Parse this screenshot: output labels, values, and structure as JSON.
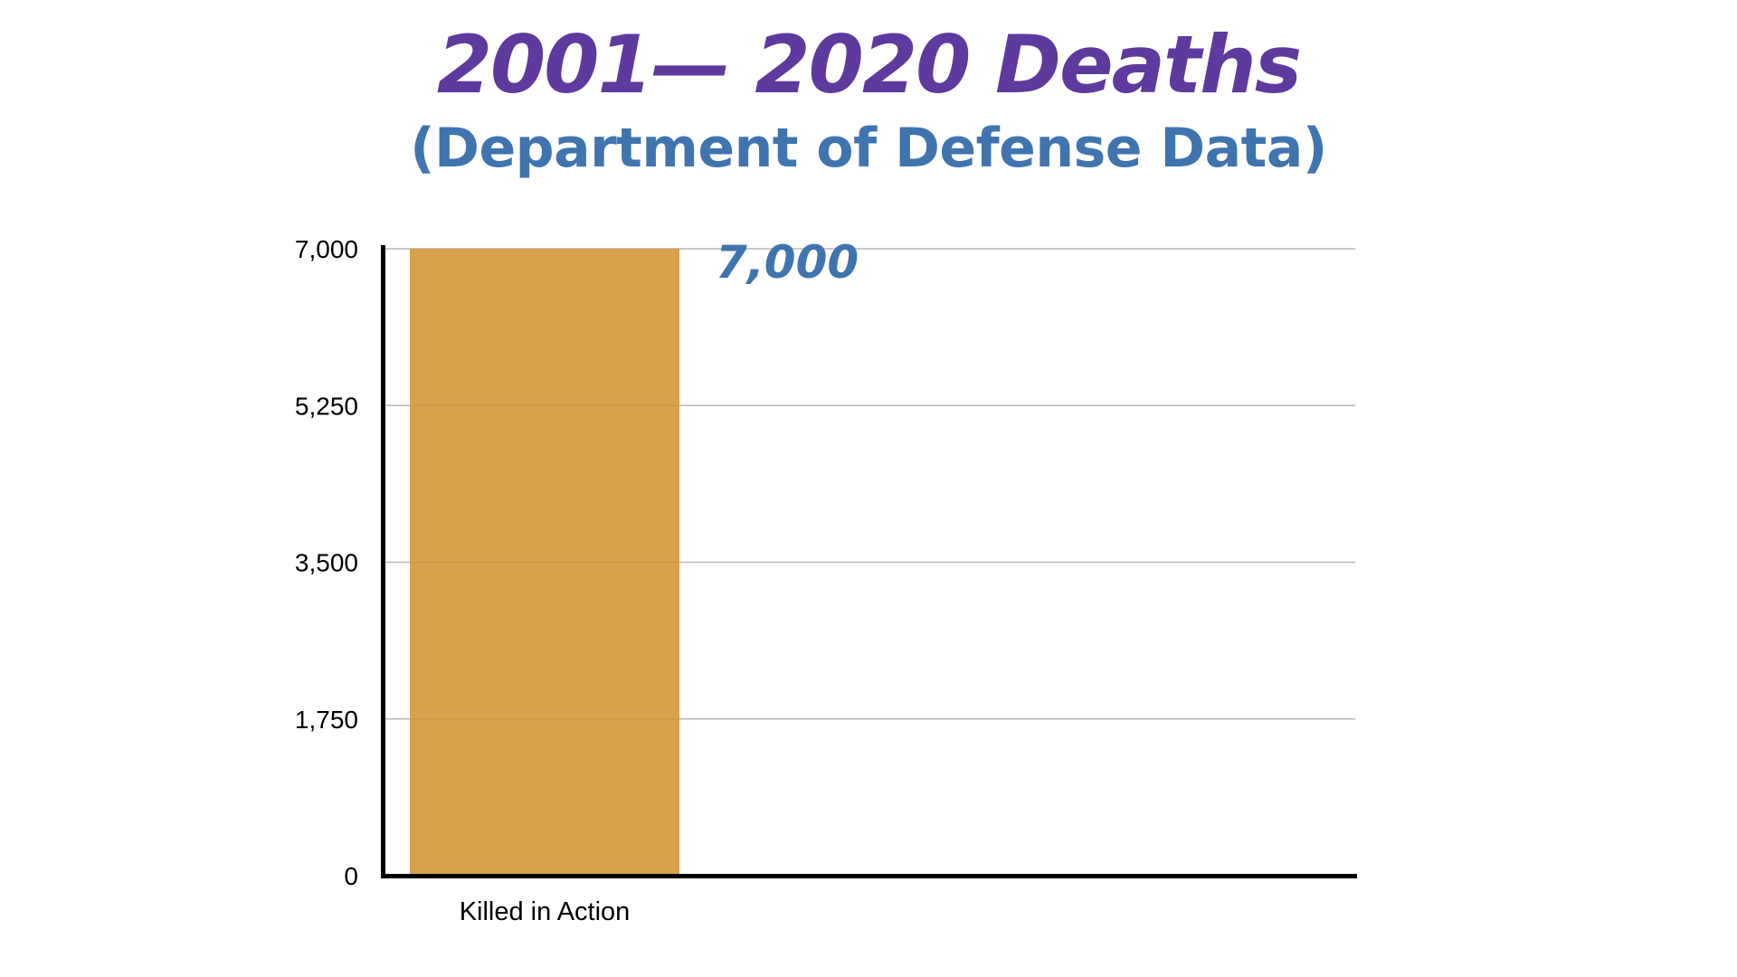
{
  "colors": {
    "title": "#5E3A9E",
    "subtitle": "#3F74AF",
    "bar": "#D9A34C",
    "data_label": "#3F74AF",
    "grid": "#C4C4C4",
    "axis": "#000000"
  },
  "chart_data": {
    "type": "bar",
    "title": "2001— 2020 Deaths",
    "subtitle": "(Department of Defense Data)",
    "xlabel": "",
    "ylabel": "",
    "categories": [
      "Killed in Action"
    ],
    "values": [
      7000
    ],
    "data_labels": [
      "7,000"
    ],
    "ylim": [
      0,
      7000
    ],
    "yticks": [
      0,
      1750,
      3500,
      5250,
      7000
    ],
    "ytick_labels": [
      "0",
      "1,750",
      "3,500",
      "5,250",
      "7,000"
    ],
    "grid": true,
    "legend": "none"
  }
}
